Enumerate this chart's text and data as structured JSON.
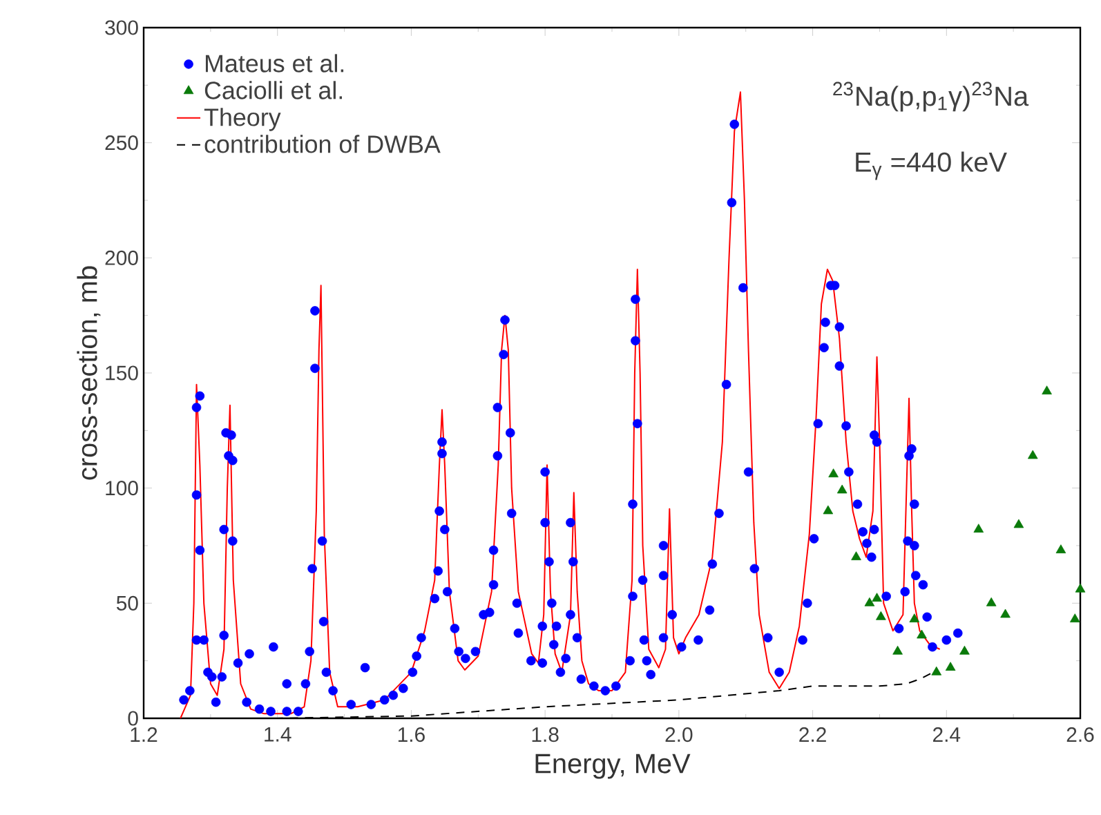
{
  "chart_data": {
    "type": "scatter",
    "xlabel": "Energy, MeV",
    "ylabel": "cross-section, mb",
    "xlim": [
      1.2,
      2.6
    ],
    "xticks": [
      1.2,
      1.4,
      1.6,
      1.8,
      {
        "value": 2.0,
        "label": "2.0"
      },
      2.2,
      2.4,
      2.6
    ],
    "ylim": [
      0,
      300
    ],
    "yticks": [
      0,
      50,
      100,
      150,
      200,
      250,
      300
    ],
    "grid": false,
    "legend": "top left",
    "annotations": [
      "$^{23}$Na(p,p$_{1}$γ)$^{23}$Na",
      "E$_{γ}$ =440 keV"
    ],
    "series": [
      {
        "name": "Mateus et al.",
        "marker": "circle",
        "color": "#0000ff",
        "x": [
          1.26,
          1.269,
          1.279,
          1.29,
          1.279,
          1.284,
          1.279,
          1.284,
          1.296,
          1.302,
          1.308,
          1.317,
          1.32,
          1.32,
          1.323,
          1.331,
          1.327,
          1.333,
          1.333,
          1.341,
          1.358,
          1.354,
          1.373,
          1.394,
          1.39,
          1.414,
          1.414,
          1.431,
          1.442,
          1.448,
          1.452,
          1.456,
          1.456,
          1.467,
          1.469,
          1.473,
          1.483,
          1.51,
          1.531,
          1.54,
          1.56,
          1.573,
          1.588,
          1.602,
          1.608,
          1.615,
          1.635,
          1.64,
          1.642,
          1.646,
          1.646,
          1.65,
          1.654,
          1.665,
          1.671,
          1.681,
          1.696,
          1.708,
          1.717,
          1.723,
          1.723,
          1.729,
          1.729,
          1.738,
          1.74,
          1.748,
          1.75,
          1.758,
          1.76,
          1.779,
          1.796,
          1.796,
          1.8,
          1.8,
          1.806,
          1.81,
          1.813,
          1.817,
          1.823,
          1.831,
          1.838,
          1.838,
          1.842,
          1.848,
          1.854,
          1.873,
          1.89,
          1.906,
          1.927,
          1.931,
          1.931,
          1.935,
          1.935,
          1.938,
          1.946,
          1.948,
          1.952,
          1.958,
          1.977,
          1.977,
          1.977,
          1.99,
          2.004,
          2.029,
          2.046,
          2.05,
          2.06,
          2.071,
          2.079,
          2.083,
          2.096,
          2.104,
          2.113,
          2.133,
          2.15,
          2.185,
          2.192,
          2.202,
          2.208,
          2.217,
          2.219,
          2.227,
          2.233,
          2.24,
          2.24,
          2.25,
          2.254,
          2.267,
          2.275,
          2.281,
          2.288,
          2.292,
          2.292,
          2.296,
          2.31,
          2.329,
          2.338,
          2.342,
          2.344,
          2.348,
          2.352,
          2.352,
          2.354,
          2.365,
          2.371,
          2.379,
          2.4,
          2.417
        ],
        "values": [
          8,
          12,
          34,
          34,
          97,
          73,
          135,
          140,
          20,
          18,
          7,
          18,
          36,
          82,
          124,
          123,
          114,
          112,
          77,
          24,
          28,
          7,
          4,
          31,
          3,
          15,
          3,
          3,
          15,
          29,
          65,
          152,
          177,
          77,
          42,
          20,
          12,
          6,
          22,
          6,
          8,
          10,
          13,
          20,
          27,
          35,
          52,
          64,
          90,
          115,
          120,
          82,
          55,
          39,
          29,
          26,
          29,
          45,
          46,
          58,
          73,
          114,
          135,
          158,
          173,
          124,
          89,
          50,
          37,
          25,
          24,
          40,
          107,
          85,
          68,
          50,
          32,
          40,
          20,
          26,
          45,
          85,
          68,
          35,
          17,
          14,
          12,
          14,
          25,
          53,
          93,
          164,
          182,
          128,
          60,
          34,
          25,
          19,
          35,
          75,
          62,
          45,
          31,
          34,
          47,
          67,
          89,
          145,
          224,
          258,
          187,
          107,
          65,
          35,
          20,
          34,
          50,
          78,
          128,
          161,
          172,
          188,
          188,
          170,
          153,
          127,
          107,
          93,
          81,
          76,
          70,
          82,
          123,
          120,
          53,
          39,
          55,
          77,
          114,
          117,
          93,
          75,
          62,
          58,
          44,
          31,
          34,
          37
        ]
      },
      {
        "name": "Caciolli et al.",
        "marker": "triangle",
        "color": "#0a7a0a",
        "x": [
          2.223,
          2.231,
          2.244,
          2.265,
          2.285,
          2.296,
          2.302,
          2.327,
          2.352,
          2.363,
          2.385,
          2.406,
          2.427,
          2.448,
          2.467,
          2.488,
          2.508,
          2.529,
          2.55,
          2.571,
          2.592,
          2.6
        ],
        "values": [
          90,
          106,
          99,
          70,
          50,
          52,
          44,
          29,
          43,
          36,
          20,
          22,
          29,
          82,
          50,
          45,
          84,
          114,
          142,
          73,
          43,
          56
        ]
      },
      {
        "name": "Theory",
        "type": "line",
        "marker": "none",
        "line_style": "solid",
        "color": "#ff0000",
        "x": [
          1.255,
          1.27,
          1.275,
          1.279,
          1.284,
          1.29,
          1.3,
          1.31,
          1.32,
          1.325,
          1.329,
          1.334,
          1.345,
          1.36,
          1.38,
          1.42,
          1.44,
          1.45,
          1.458,
          1.462,
          1.465,
          1.47,
          1.478,
          1.49,
          1.52,
          1.56,
          1.6,
          1.62,
          1.635,
          1.642,
          1.646,
          1.65,
          1.657,
          1.67,
          1.68,
          1.7,
          1.72,
          1.73,
          1.735,
          1.74,
          1.745,
          1.75,
          1.76,
          1.78,
          1.79,
          1.798,
          1.803,
          1.808,
          1.815,
          1.825,
          1.838,
          1.843,
          1.848,
          1.855,
          1.865,
          1.88,
          1.9,
          1.92,
          1.93,
          1.934,
          1.938,
          1.942,
          1.946,
          1.955,
          1.97,
          1.98,
          1.986,
          1.992,
          2.0,
          2.01,
          2.03,
          2.05,
          2.065,
          2.075,
          2.083,
          2.092,
          2.098,
          2.104,
          2.112,
          2.12,
          2.135,
          2.15,
          2.165,
          2.18,
          2.195,
          2.205,
          2.213,
          2.222,
          2.23,
          2.24,
          2.25,
          2.26,
          2.27,
          2.28,
          2.29,
          2.296,
          2.3,
          2.306,
          2.32,
          2.335,
          2.344,
          2.348,
          2.352,
          2.36,
          2.375,
          2.39
        ],
        "values": [
          0,
          10,
          50,
          145,
          110,
          50,
          15,
          10,
          30,
          100,
          136,
          60,
          15,
          4,
          2,
          2,
          5,
          25,
          90,
          160,
          188,
          80,
          20,
          5,
          5,
          8,
          20,
          38,
          60,
          110,
          134,
          110,
          55,
          25,
          21,
          27,
          55,
          110,
          160,
          175,
          160,
          100,
          55,
          28,
          24,
          45,
          110,
          55,
          28,
          20,
          45,
          98,
          55,
          25,
          15,
          12,
          12,
          20,
          60,
          150,
          195,
          150,
          75,
          30,
          22,
          30,
          91,
          35,
          28,
          35,
          45,
          70,
          120,
          200,
          255,
          272,
          225,
          160,
          85,
          45,
          20,
          13,
          20,
          40,
          80,
          130,
          180,
          195,
          190,
          165,
          120,
          90,
          78,
          70,
          90,
          157,
          120,
          50,
          38,
          45,
          139,
          90,
          50,
          38,
          32,
          30
        ]
      },
      {
        "name": "contribution of DWBA",
        "type": "line",
        "marker": "none",
        "line_style": "dashed",
        "color": "#000000",
        "x": [
          1.26,
          1.4,
          1.6,
          1.8,
          2.0,
          2.15,
          2.2,
          2.3,
          2.34,
          2.36,
          2.38
        ],
        "values": [
          0,
          0,
          1,
          5,
          8,
          12,
          14,
          14,
          15,
          17,
          20
        ]
      }
    ]
  }
}
